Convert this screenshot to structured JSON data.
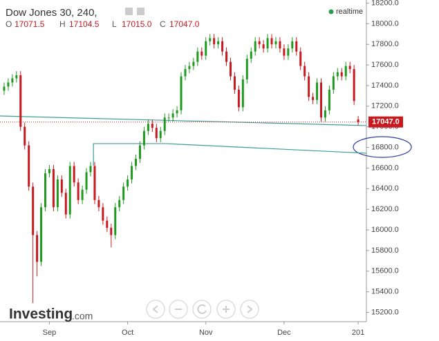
{
  "chart_data": {
    "type": "candlestick",
    "title": "Dow Jones 30, 240,",
    "status": "realtime",
    "ohlc_letters": [
      "O",
      "H",
      "L",
      "C"
    ],
    "ohlc_labels": [
      "17071.5",
      "17104.5",
      "17015.0",
      "17047.0"
    ],
    "logo": {
      "name": "Investing",
      "suffix": ".com"
    },
    "up_color": "#1f9a1f",
    "down_color": "#c8191e",
    "xlim": [
      -1,
      88
    ],
    "xticks": [
      {
        "value": 11,
        "label": "Sep"
      },
      {
        "value": 30,
        "label": "Oct"
      },
      {
        "value": 49,
        "label": "Nov"
      },
      {
        "value": 68,
        "label": "Dec"
      },
      {
        "value": 86,
        "label": "201"
      }
    ],
    "ylim": [
      15110,
      18230
    ],
    "yticks": [
      {
        "value": 15200,
        "label": "15200.0"
      },
      {
        "value": 15400,
        "label": "15400.0"
      },
      {
        "value": 15600,
        "label": "15600.0"
      },
      {
        "value": 15800,
        "label": "15800.0"
      },
      {
        "value": 16000,
        "label": "16000.0"
      },
      {
        "value": 16200,
        "label": "16200.0"
      },
      {
        "value": 16400,
        "label": "16400.0"
      },
      {
        "value": 16600,
        "label": "16600.0"
      },
      {
        "value": 16800,
        "label": "16800.0"
      },
      {
        "value": 17000,
        "label": "17000.0"
      },
      {
        "value": 17200,
        "label": "17200.0"
      },
      {
        "value": 17400,
        "label": "17400.0"
      },
      {
        "value": 17600,
        "label": "17600.0"
      },
      {
        "value": 17800,
        "label": "17800.0"
      },
      {
        "value": 18000,
        "label": "18000.0"
      },
      {
        "value": 18200,
        "label": "18200.0"
      }
    ],
    "x": [
      0,
      1,
      2,
      3,
      4,
      5,
      6,
      7,
      8,
      9,
      10,
      11,
      12,
      13,
      14,
      15,
      16,
      17,
      18,
      19,
      20,
      21,
      22,
      23,
      24,
      25,
      26,
      27,
      28,
      29,
      30,
      31,
      32,
      33,
      34,
      35,
      36,
      37,
      38,
      39,
      40,
      41,
      42,
      43,
      44,
      45,
      46,
      47,
      48,
      49,
      50,
      51,
      52,
      53,
      54,
      55,
      56,
      57,
      58,
      59,
      60,
      61,
      62,
      63,
      64,
      65,
      66,
      67,
      68,
      69,
      70,
      71,
      72,
      73,
      74,
      75,
      76,
      77,
      78,
      79,
      80,
      81,
      82,
      83,
      84,
      85,
      86
    ],
    "open": [
      17350,
      17390,
      17430,
      17470,
      17500,
      17000,
      16820,
      16420,
      15950,
      15690,
      16220,
      16550,
      16590,
      16220,
      16490,
      16360,
      16150,
      16620,
      16460,
      16290,
      16390,
      16560,
      16620,
      16290,
      16220,
      16090,
      16020,
      15950,
      16220,
      16290,
      16420,
      16490,
      16620,
      16690,
      16820,
      16960,
      17030,
      16990,
      16890,
      16960,
      17090,
      17090,
      17130,
      17160,
      17490,
      17560,
      17590,
      17630,
      17730,
      17690,
      17830,
      17860,
      17800,
      17830,
      17730,
      17630,
      17490,
      17360,
      17190,
      17460,
      17660,
      17730,
      17830,
      17800,
      17760,
      17860,
      17800,
      17830,
      17760,
      17690,
      17760,
      17830,
      17730,
      17590,
      17490,
      17290,
      17260,
      17430,
      17090,
      17160,
      17360,
      17490,
      17530,
      17490,
      17590,
      17560,
      17071.5
    ],
    "high": [
      17430,
      17470,
      17510,
      17540,
      17540,
      17040,
      16860,
      16460,
      15990,
      16260,
      16590,
      16630,
      16630,
      16530,
      16530,
      16400,
      16660,
      16660,
      16500,
      16430,
      16600,
      16660,
      16660,
      16330,
      16260,
      16130,
      16060,
      16260,
      16330,
      16460,
      16530,
      16660,
      16730,
      16860,
      17000,
      17070,
      17070,
      17030,
      17000,
      17130,
      17130,
      17170,
      17200,
      17530,
      17600,
      17630,
      17670,
      17770,
      17770,
      17870,
      17900,
      17900,
      17870,
      17870,
      17770,
      17670,
      17530,
      17400,
      17500,
      17700,
      17770,
      17870,
      17870,
      17840,
      17900,
      17900,
      17870,
      17870,
      17800,
      17800,
      17870,
      17870,
      17770,
      17630,
      17530,
      17330,
      17470,
      17470,
      17200,
      17400,
      17530,
      17570,
      17570,
      17630,
      17630,
      17600,
      17104.5
    ],
    "low": [
      17310,
      17350,
      17390,
      17430,
      16960,
      16780,
      16380,
      15290,
      15550,
      15650,
      16180,
      16510,
      16180,
      16180,
      16320,
      16110,
      16110,
      16420,
      16250,
      16250,
      16350,
      16520,
      16250,
      16180,
      16050,
      15980,
      15830,
      15910,
      16180,
      16250,
      16380,
      16450,
      16580,
      16650,
      16780,
      16920,
      16950,
      16850,
      16850,
      16920,
      17050,
      17050,
      17090,
      17120,
      17450,
      17520,
      17550,
      17590,
      17650,
      17650,
      17790,
      17760,
      17760,
      17690,
      17590,
      17450,
      17320,
      17150,
      17150,
      17420,
      17620,
      17690,
      17760,
      17720,
      17720,
      17760,
      17760,
      17720,
      17650,
      17650,
      17720,
      17690,
      17550,
      17450,
      17250,
      17220,
      17220,
      17050,
      17050,
      17120,
      17320,
      17450,
      17450,
      17450,
      17520,
      17210,
      17015
    ],
    "close": [
      17390,
      17430,
      17470,
      17500,
      17000,
      16820,
      16420,
      15950,
      15690,
      16220,
      16550,
      16590,
      16220,
      16490,
      16360,
      16150,
      16620,
      16460,
      16290,
      16390,
      16560,
      16620,
      16290,
      16220,
      16090,
      16020,
      15950,
      16220,
      16290,
      16420,
      16490,
      16620,
      16690,
      16820,
      16960,
      17030,
      16990,
      16890,
      16960,
      17090,
      17090,
      17130,
      17160,
      17490,
      17560,
      17590,
      17630,
      17730,
      17690,
      17830,
      17860,
      17800,
      17830,
      17730,
      17630,
      17490,
      17360,
      17190,
      17460,
      17660,
      17730,
      17830,
      17800,
      17760,
      17860,
      17800,
      17830,
      17760,
      17690,
      17760,
      17830,
      17730,
      17590,
      17490,
      17290,
      17260,
      17430,
      17090,
      17160,
      17360,
      17490,
      17530,
      17490,
      17590,
      17560,
      17250,
      17047
    ],
    "lines": [
      {
        "color": "#3a9e96",
        "x": [
          -1,
          88
        ],
        "y": [
          17105,
          17012
        ]
      },
      {
        "color": "#3a9e96",
        "x": [
          21.7,
          21.7,
          39.3,
          88
        ],
        "y": [
          16623,
          16837,
          16837,
          16744
        ]
      }
    ]
  }
}
